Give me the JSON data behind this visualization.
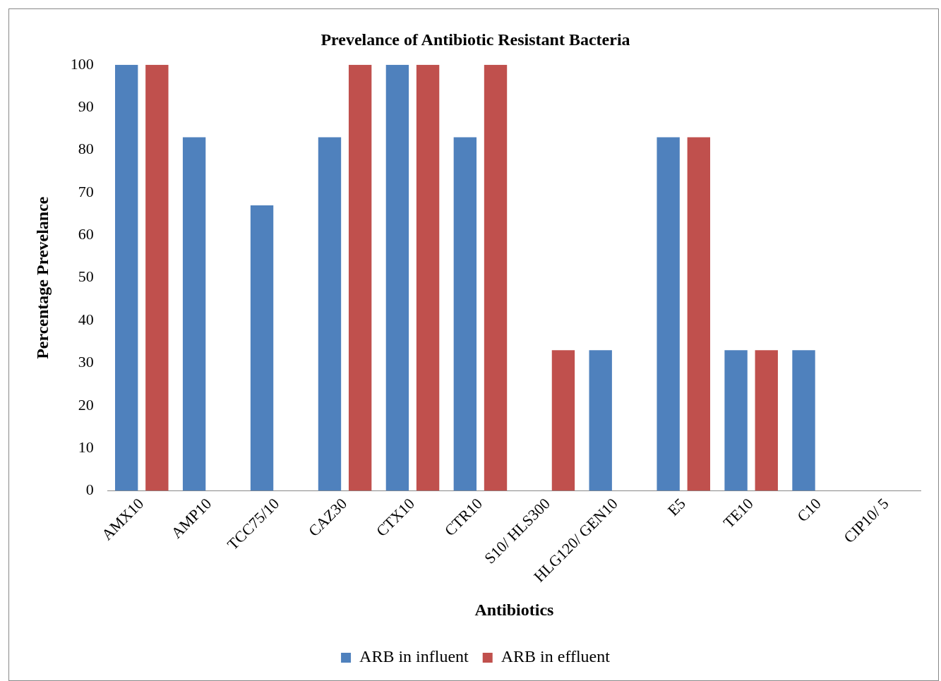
{
  "chart_data": {
    "type": "bar",
    "title": "Prevelance of Antibiotic Resistant Bacteria",
    "xlabel": "Antibiotics",
    "ylabel": "Percentage Prevelance",
    "categories": [
      "AMX10",
      "AMP10",
      "TCC75/10",
      "CAZ30",
      "CTX10",
      "CTR10",
      "S10/ HLS300",
      "HLG120/ GEN10",
      "E5",
      "TE10",
      "C10",
      "CIP10/ 5"
    ],
    "series": [
      {
        "name": "ARB in influent",
        "color": "#4f81bd",
        "values": [
          100,
          83,
          67,
          83,
          100,
          83,
          0,
          33,
          83,
          33,
          33,
          0
        ]
      },
      {
        "name": "ARB in effluent",
        "color": "#c0504d",
        "values": [
          100,
          0,
          0,
          100,
          100,
          100,
          33,
          0,
          83,
          33,
          0,
          0
        ]
      }
    ],
    "ylim": [
      0,
      100
    ],
    "yticks": [
      0,
      10,
      20,
      30,
      40,
      50,
      60,
      70,
      80,
      90,
      100
    ],
    "grid": false,
    "legend": "bottom"
  }
}
